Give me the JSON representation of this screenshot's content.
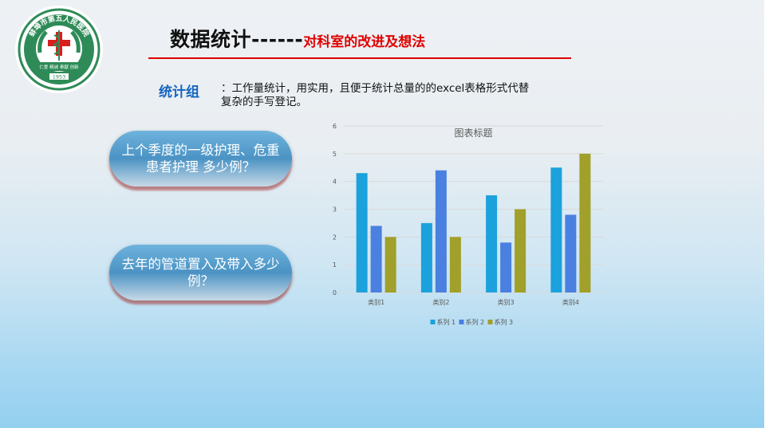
{
  "logo": {
    "arc_text": "蚌埠市第五人民医院",
    "ribbon_text": "仁爱 精诚 奉献 创新",
    "year": "1953",
    "icon": "caduceus-cross"
  },
  "header": {
    "title": "数据统计------",
    "subtitle": "对科室的改进及想法",
    "rule_color": "#e00000"
  },
  "group": {
    "label": "统计组",
    "description": "：工作量统计，用实用，且便于统计总量的的excel表格形式代替复杂的手写登记。"
  },
  "questions": [
    {
      "text": "上个季度的一级护理、危重患者护理 多少例？"
    },
    {
      "text": "去年的管道置入及带入多少例？"
    }
  ],
  "chart_data": {
    "type": "bar",
    "title": "图表标题",
    "categories": [
      "类别1",
      "类别2",
      "类别3",
      "类别4"
    ],
    "series": [
      {
        "name": "系列 1",
        "values": [
          4.3,
          2.5,
          3.5,
          4.5
        ],
        "color": "#1ba1dc"
      },
      {
        "name": "系列 2",
        "values": [
          2.4,
          4.4,
          1.8,
          2.8
        ],
        "color": "#4a80e0"
      },
      {
        "name": "系列 3",
        "values": [
          2.0,
          2.0,
          3.0,
          5.0
        ],
        "color": "#a0a02a"
      }
    ],
    "ylim": [
      0,
      6
    ],
    "yticks": [
      "0",
      "1",
      "2",
      "3",
      "4",
      "5",
      "6"
    ],
    "grid": true,
    "legend": "bottom"
  }
}
